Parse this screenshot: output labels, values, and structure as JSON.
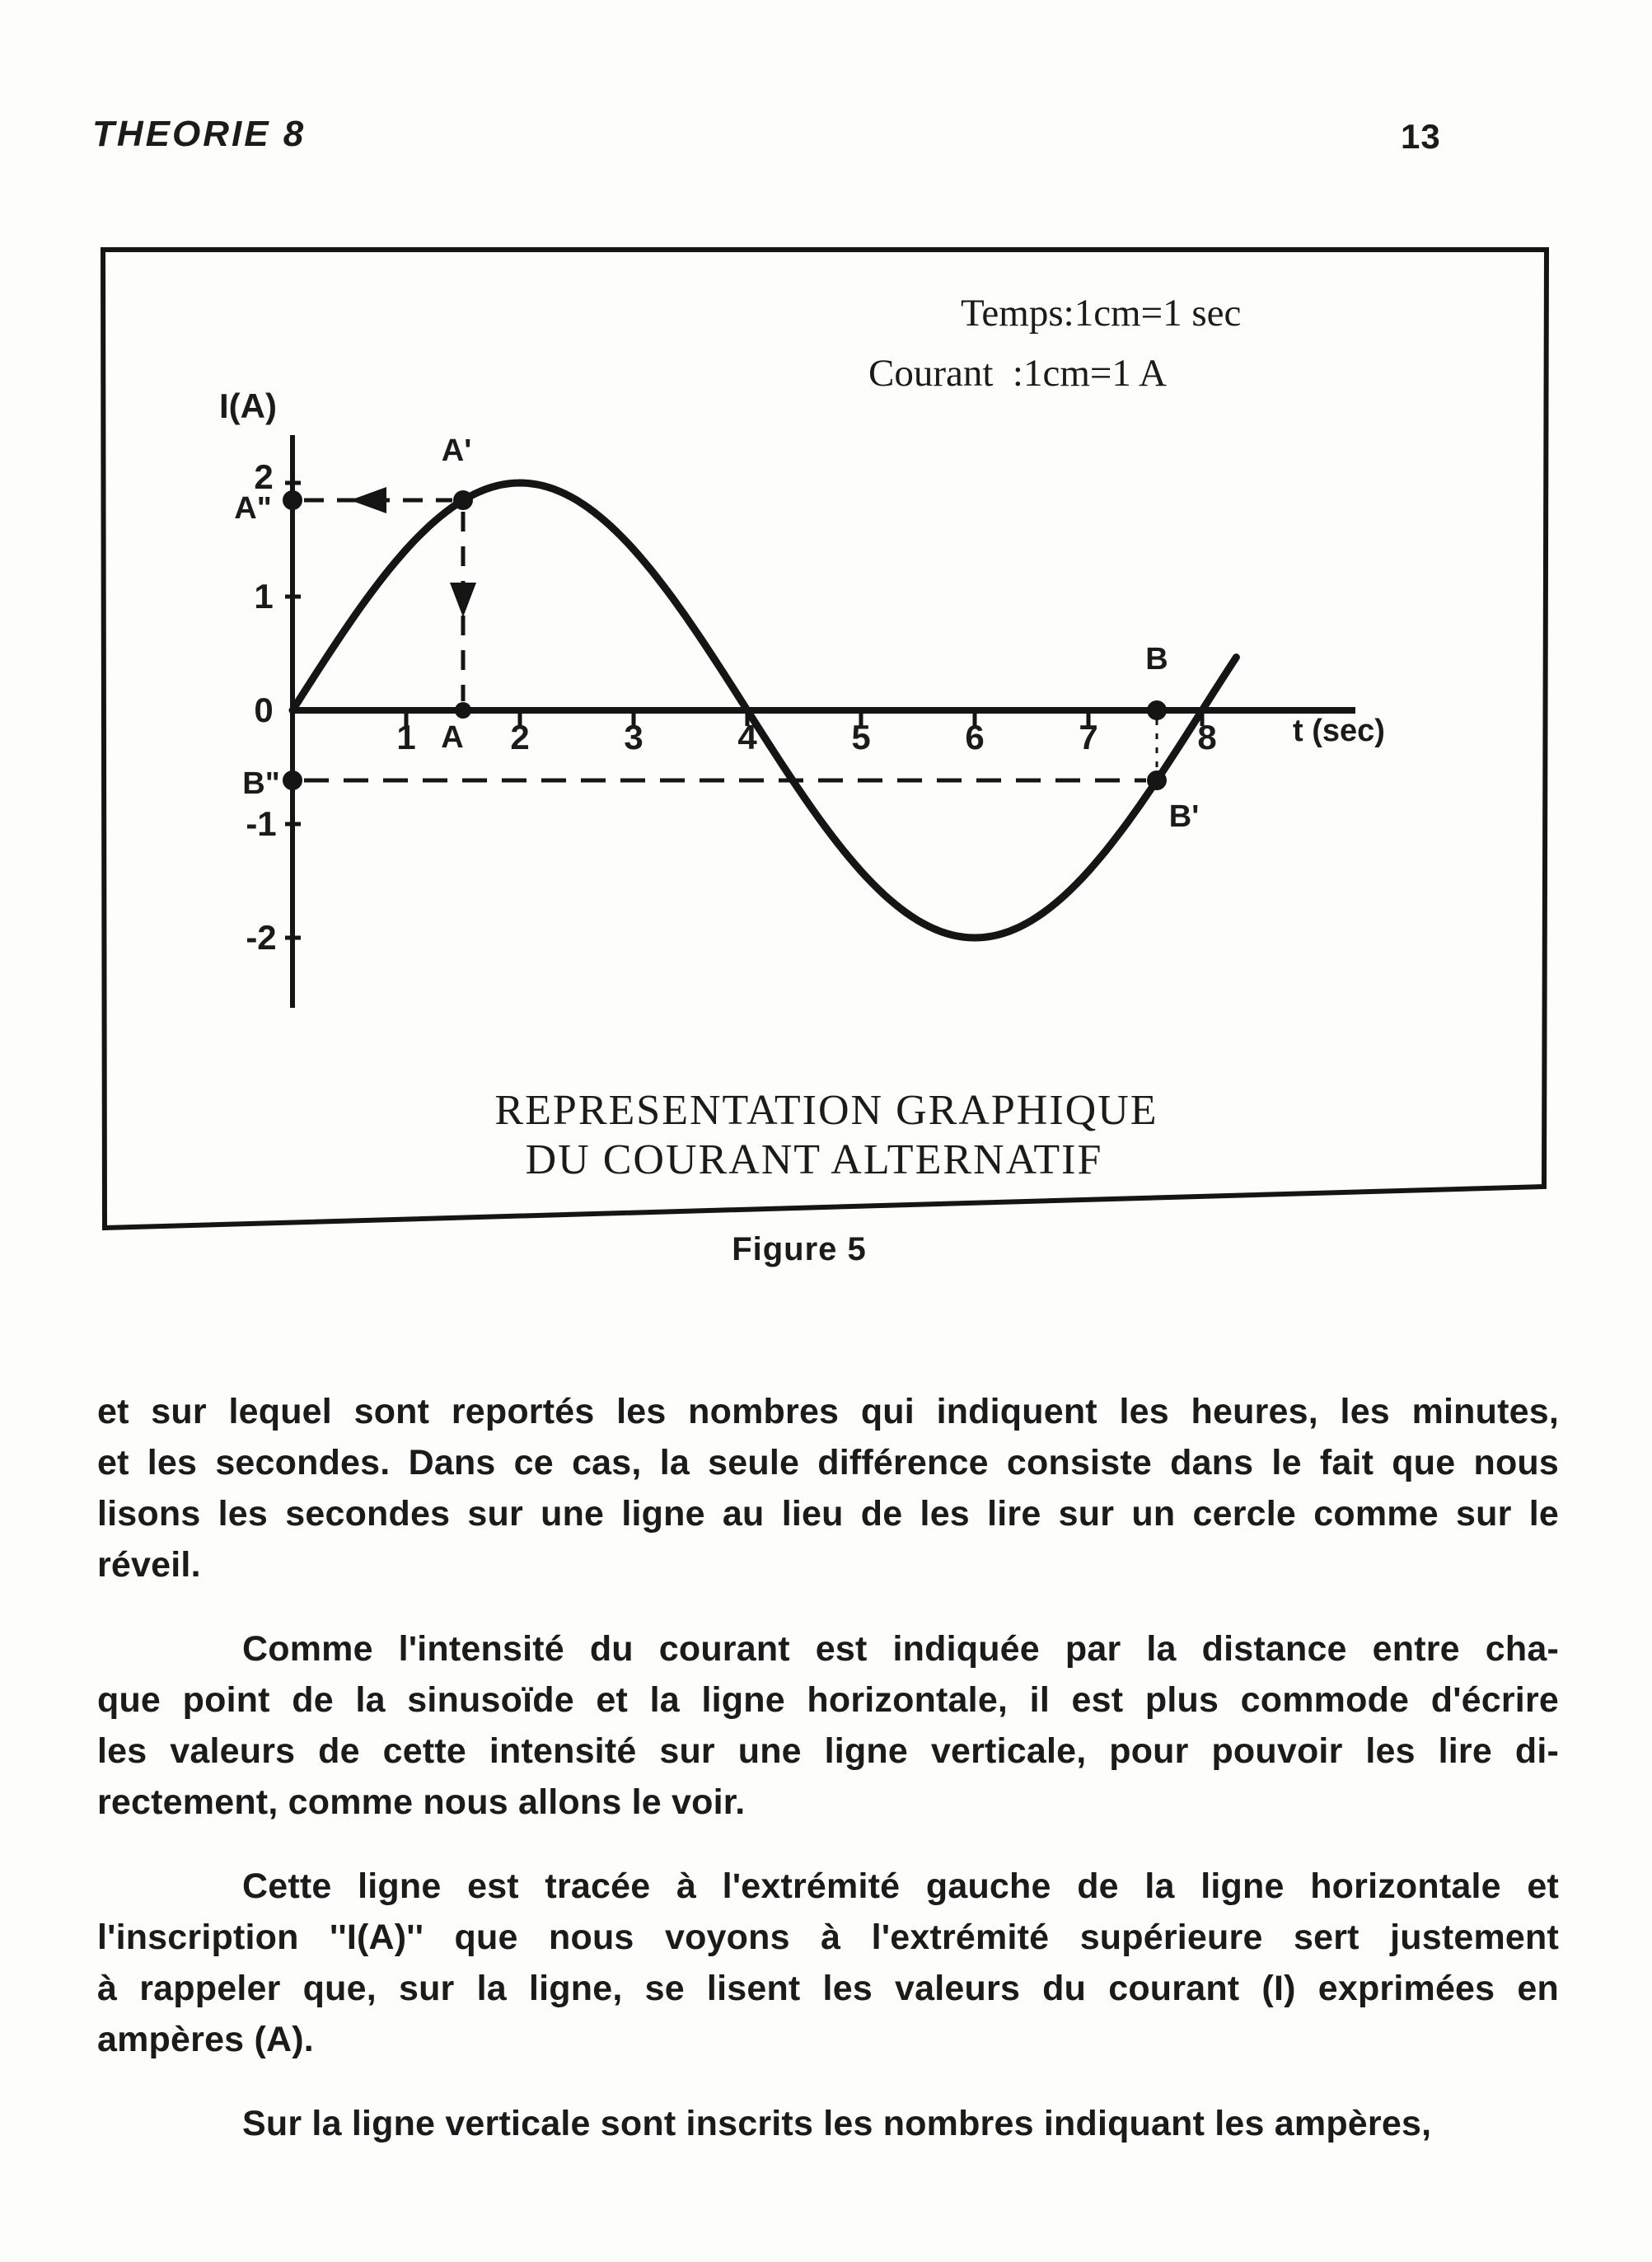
{
  "header": {
    "section_title": "THEORIE 8",
    "page_number": "13"
  },
  "figure": {
    "legend_line1": "Temps:1cm=1 sec",
    "legend_line2": "Courant  :1cm=1 A",
    "y_axis_label": "I(A)",
    "x_axis_label": "t (sec)",
    "x_tick_labels": [
      "1",
      "2",
      "3",
      "4",
      "5",
      "6",
      "7",
      "8"
    ],
    "y_tick_labels": [
      "2",
      "1",
      "0",
      "-1",
      "-2"
    ],
    "title_line1": "REPRESENTATION GRAPHIQUE",
    "title_line2": "DU COURANT ALTERNATIF",
    "caption": "Figure 5"
  },
  "chart_data": {
    "type": "line",
    "title": "REPRESENTATION GRAPHIQUE DU COURANT ALTERNATIF",
    "xlabel": "t (sec)",
    "ylabel": "I(A)",
    "scale_note_time": "1cm = 1 sec",
    "scale_note_current": "1cm = 1 A",
    "amplitude": 2,
    "period_sec": 8,
    "t_draw_end": 8.3,
    "x_ticks": [
      1,
      2,
      3,
      4,
      5,
      6,
      7,
      8
    ],
    "y_ticks": [
      2,
      1,
      0,
      -1,
      -2
    ],
    "xlim": [
      0,
      8.6
    ],
    "ylim": [
      -2.6,
      2.6
    ],
    "grid": false,
    "function": "I(t) = 2 * sin(2*pi*t/8)",
    "series": [
      {
        "name": "courant alternatif (sinusoide)",
        "points": [
          [
            0,
            0
          ],
          [
            1,
            1.41
          ],
          [
            1.5,
            1.85
          ],
          [
            2,
            2
          ],
          [
            3,
            1.41
          ],
          [
            4,
            0
          ],
          [
            5,
            -1.41
          ],
          [
            6,
            -2
          ],
          [
            7,
            -1.41
          ],
          [
            7.6,
            -0.62
          ],
          [
            8,
            0
          ],
          [
            8.3,
            0.47
          ]
        ]
      }
    ],
    "annotated_points": [
      {
        "label": "A",
        "t": 1.5,
        "I": 0
      },
      {
        "label": "A'",
        "t": 1.5,
        "I": 1.85
      },
      {
        "label": "A\"",
        "t": 0,
        "I": 1.85
      },
      {
        "label": "B",
        "t": 7.6,
        "I": 0
      },
      {
        "label": "B'",
        "t": 7.6,
        "I": -0.62
      },
      {
        "label": "B\"",
        "t": 0,
        "I": -0.62
      }
    ]
  },
  "body": {
    "paragraphs": [
      {
        "lines": [
          "et sur lequel sont reportés les nombres qui indiquent les heures, les minutes,",
          "et les secondes. Dans ce cas, la seule différence consiste dans le fait que nous",
          "lisons les secondes sur une ligne au lieu de les lire sur un cercle comme sur le",
          "réveil."
        ]
      },
      {
        "lines": [
          "Comme l'intensité du courant est indiquée par la distance entre cha-",
          "que point de la sinusoïde et la ligne horizontale, il est plus commode d'écrire",
          "les valeurs de cette intensité sur une ligne verticale, pour pouvoir les lire di-",
          "rectement, comme nous allons le voir."
        ]
      },
      {
        "lines": [
          "Cette ligne est tracée à l'extrémité gauche de la ligne horizontale et",
          "l'inscription ''I(A)'' que nous voyons à l'extrémité supérieure sert justement",
          "à rappeler que, sur la ligne, se lisent les valeurs du courant (I) exprimées en",
          "ampères (A)."
        ]
      },
      {
        "lines": [
          "Sur la ligne verticale sont inscrits les nombres indiquant les ampères,"
        ]
      }
    ]
  }
}
